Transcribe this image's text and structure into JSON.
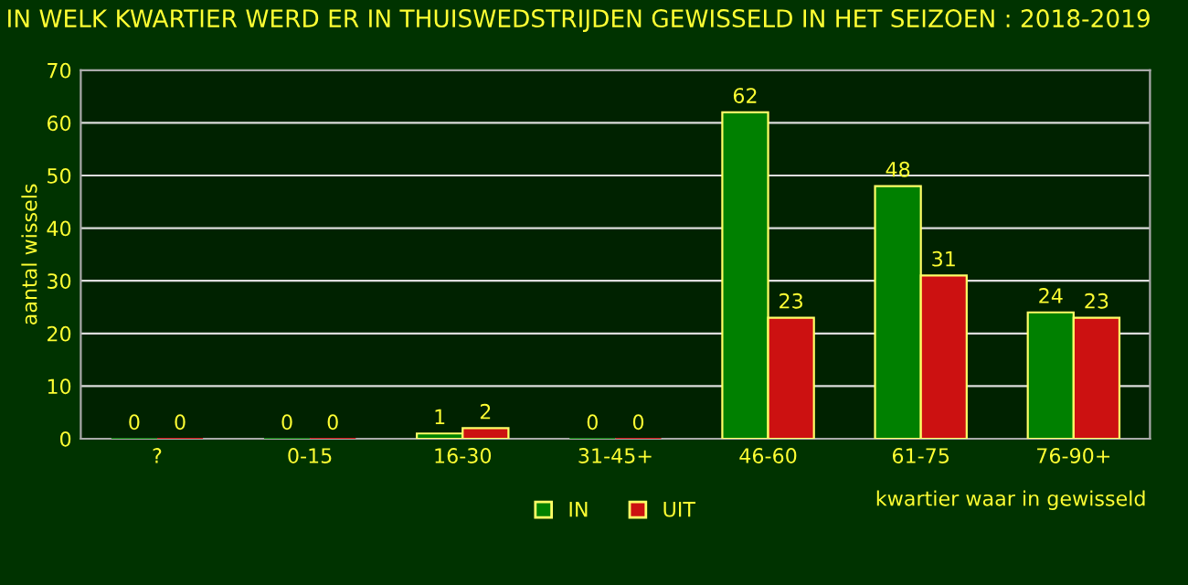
{
  "chart_data": {
    "type": "bar",
    "title": "IN WELK KWARTIER WERD ER IN THUISWEDSTRIJDEN GEWISSELD IN HET SEIZOEN : 2018-2019",
    "xlabel": "kwartier waar in gewisseld",
    "ylabel": "aantal wissels",
    "categories": [
      "?",
      "0-15",
      "16-30",
      "31-45+",
      "46-60",
      "61-75",
      "76-90+"
    ],
    "series": [
      {
        "name": "IN",
        "color": "#008000",
        "values": [
          0,
          0,
          1,
          0,
          62,
          48,
          24
        ]
      },
      {
        "name": "UIT",
        "color": "#cc1111",
        "values": [
          0,
          0,
          2,
          0,
          23,
          31,
          23
        ]
      }
    ],
    "ylim": [
      0,
      70
    ],
    "yticks": [
      0,
      10,
      20,
      30,
      40,
      50,
      60,
      70
    ],
    "grid": "y",
    "legend": "bottom",
    "data_labels": true
  }
}
